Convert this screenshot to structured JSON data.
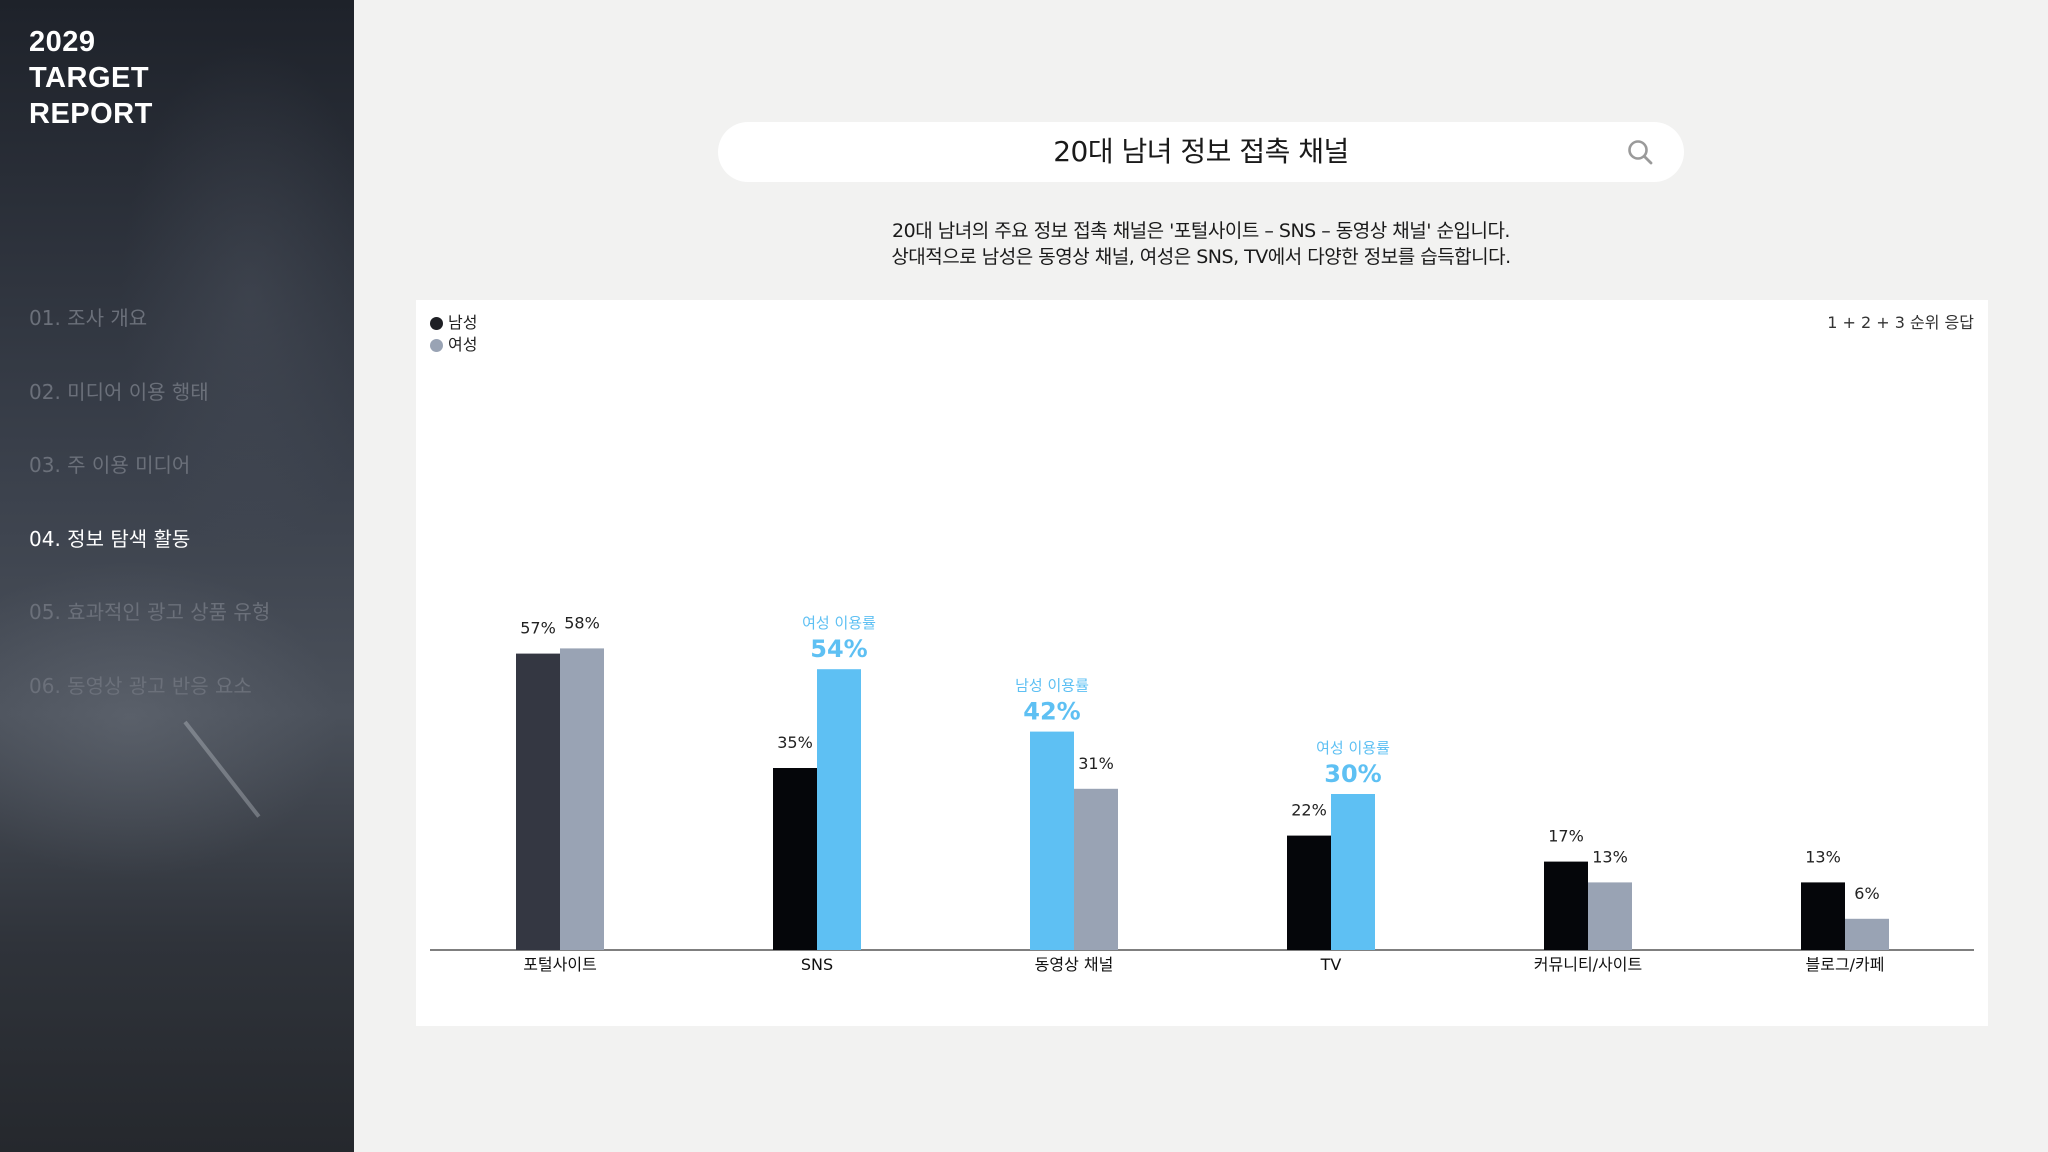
{
  "sidebar": {
    "brand": [
      "2029",
      "TARGET",
      "REPORT"
    ],
    "items": [
      {
        "label": "01. 조사 개요",
        "active": false
      },
      {
        "label": "02. 미디어 이용 행태",
        "active": false
      },
      {
        "label": "03. 주 이용 미디어",
        "active": false
      },
      {
        "label": "04. 정보 탐색 활동",
        "active": true
      },
      {
        "label": "05. 효과적인 광고 상품 유형",
        "active": false
      },
      {
        "label": "06. 동영상 광고 반응 요소",
        "active": false
      }
    ]
  },
  "header": {
    "title": "20대 남녀 정보 접촉 채널",
    "icon": "search-icon"
  },
  "description": [
    "20대 남녀의 주요 정보 접촉 채널은 '포털사이트 – SNS – 동영상 채널' 순입니다.",
    "상대적으로 남성은 동영상 채널, 여성은 SNS, TV에서 다양한 정보를 습득합니다."
  ],
  "note": "1 + 2 + 3 순위 응답",
  "colors": {
    "male": "#05060a",
    "female": "#99a3b4",
    "male_first": "#343742",
    "highlight": "#5ec0f3"
  },
  "chart_data": {
    "type": "bar",
    "categories": [
      "포털사이트",
      "SNS",
      "동영상 채널",
      "TV",
      "커뮤니티/사이트",
      "블로그/카페"
    ],
    "series": [
      {
        "name": "남성",
        "values": [
          57,
          35,
          42,
          22,
          17,
          13
        ]
      },
      {
        "name": "여성",
        "values": [
          58,
          54,
          31,
          30,
          13,
          6
        ]
      }
    ],
    "value_suffix": "%",
    "highlights": [
      {
        "category": "SNS",
        "series": "여성",
        "caption": "여성 이용률",
        "label": "54%"
      },
      {
        "category": "동영상 채널",
        "series": "남성",
        "caption": "남성 이용률",
        "label": "42%"
      },
      {
        "category": "TV",
        "series": "여성",
        "caption": "여성 이용률",
        "label": "30%"
      }
    ],
    "legend_position": "top-left",
    "grid": false,
    "ylim": [
      0,
      100
    ]
  }
}
